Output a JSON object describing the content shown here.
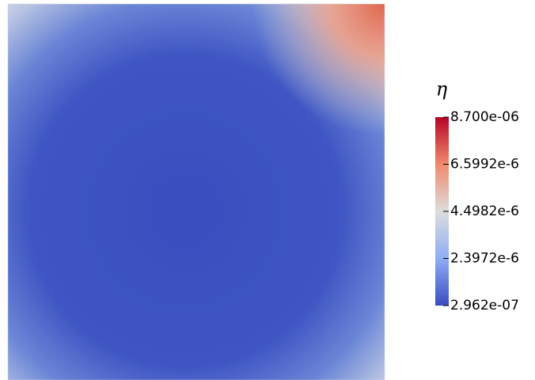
{
  "colorbar": {
    "title": "η",
    "range": [
      2.962e-07,
      8.7e-06
    ],
    "ticks": [
      {
        "value": 8.7e-06,
        "label": "8.700e-06"
      },
      {
        "value": 6.5992e-06,
        "label": "6.5992e-6"
      },
      {
        "value": 4.4982e-06,
        "label": "4.4982e-6"
      },
      {
        "value": 2.3972e-06,
        "label": "2.3972e-6"
      },
      {
        "value": 2.962e-07,
        "label": "2.962e-07"
      }
    ]
  }
}
